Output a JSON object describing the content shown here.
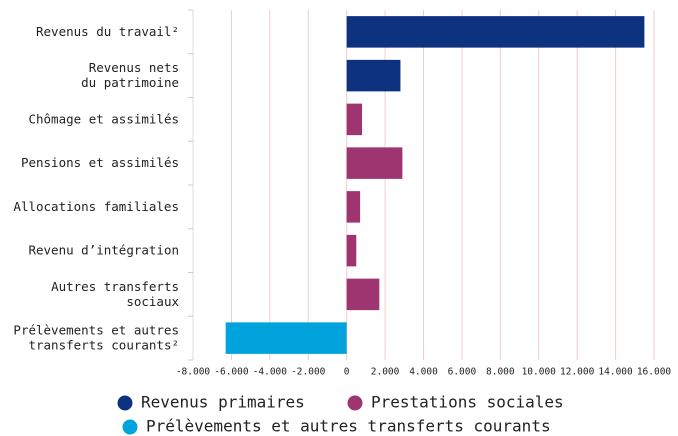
{
  "chart_data": {
    "type": "hbar",
    "categories": [
      "Revenus du travail²",
      "Revenus nets\ndu patrimoine",
      "Chômage et assimilés",
      "Pensions et assimilés",
      "Allocations familiales",
      "Revenu d’intégration",
      "Autres transferts\nsociaux",
      "Prélèvements et autres\ntransferts courants²"
    ],
    "series": [
      {
        "name": "Revenus primaires",
        "color": "#0d3380",
        "values": [
          15500,
          2800,
          null,
          null,
          null,
          null,
          null,
          null
        ]
      },
      {
        "name": "Prestations sociales",
        "color": "#9e3470",
        "values": [
          null,
          null,
          800,
          2900,
          700,
          500,
          1700,
          null
        ]
      },
      {
        "name": "Prélèvements et autres transferts courants",
        "color": "#00a3dc",
        "values": [
          null,
          null,
          null,
          null,
          null,
          null,
          null,
          -6300
        ]
      }
    ],
    "xlim": [
      -8000,
      16000
    ],
    "xticks": [
      {
        "value": -8000,
        "label": "-8.000"
      },
      {
        "value": -6000,
        "label": "-6.000"
      },
      {
        "value": -4000,
        "label": "-4.000"
      },
      {
        "value": -2000,
        "label": "-2.000"
      },
      0,
      {
        "value": 2000,
        "label": "2.000"
      },
      {
        "value": 4000,
        "label": "4.000"
      },
      {
        "value": 6000,
        "label": "6.000"
      },
      {
        "value": 8000,
        "label": "8.000"
      },
      {
        "value": 10000,
        "label": "10.000"
      },
      {
        "value": 12000,
        "label": "12.000"
      },
      {
        "value": 14000,
        "label": "14.000"
      },
      {
        "value": 16000,
        "label": "16.000"
      }
    ],
    "grid": true
  }
}
